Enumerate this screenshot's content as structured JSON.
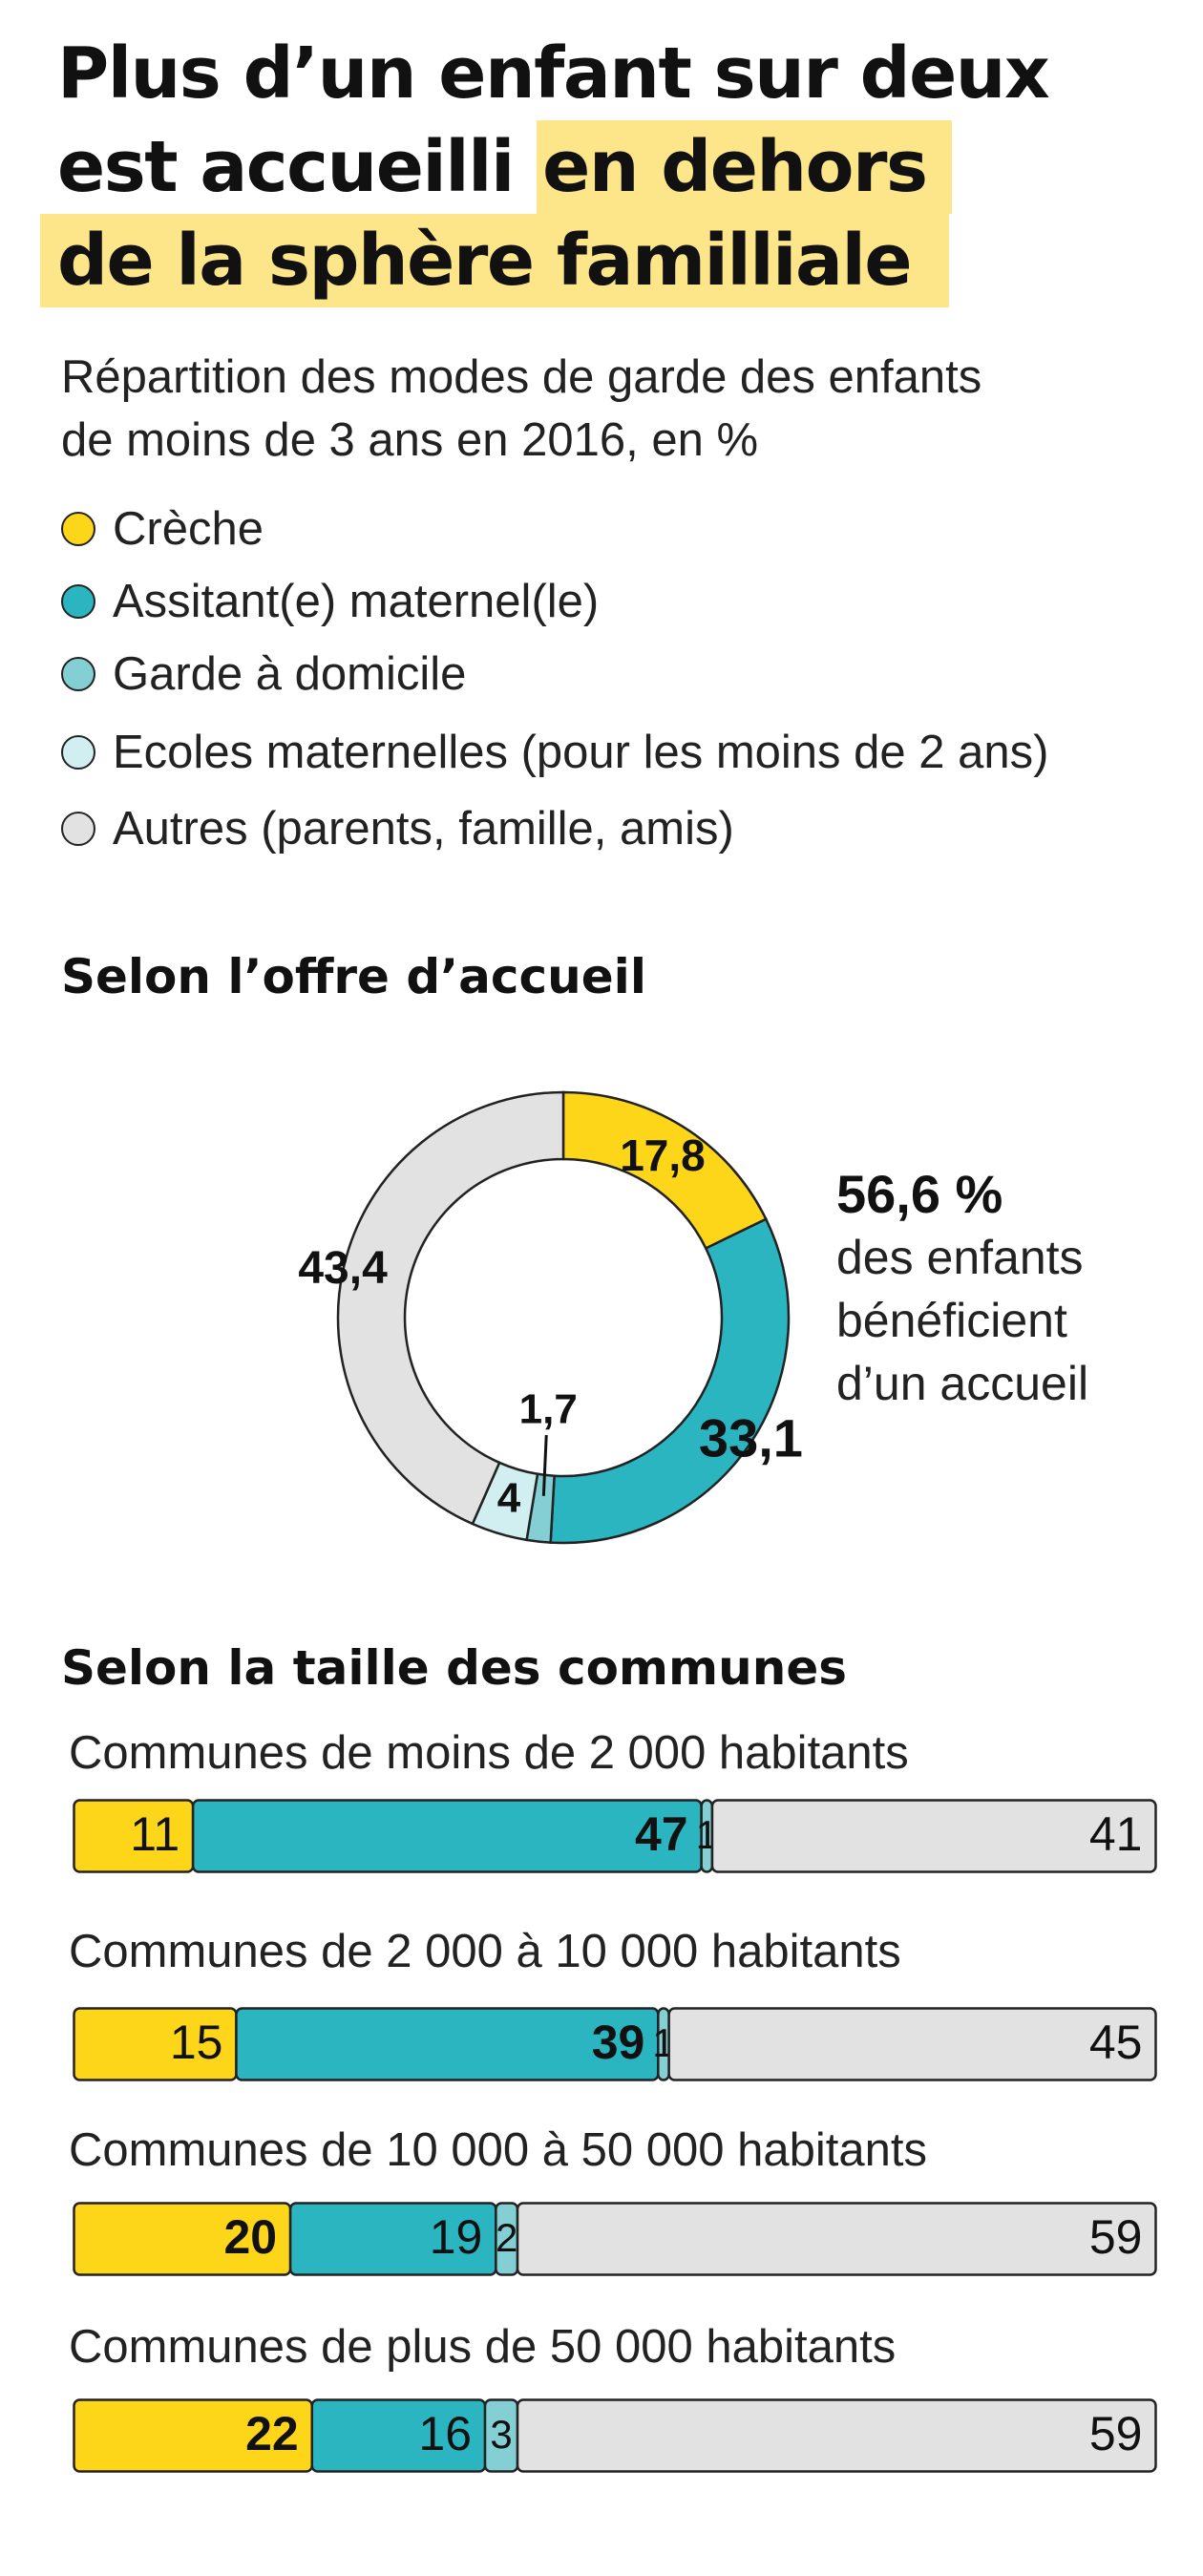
{
  "title": {
    "line1": "Plus d’un enfant sur deux",
    "line2_plain": "est accueilli ",
    "line2_highlight": "en dehors",
    "line3_highlight": "de la sphère familliale"
  },
  "subtitle": {
    "line1": "Répartition des modes de garde des enfants",
    "line2": "de moins de 3 ans en 2016, en %"
  },
  "legend": [
    {
      "label": "Crèche",
      "color": "#fed619"
    },
    {
      "label": "Assitant(e) maternel(le)",
      "color": "#2ab5c0"
    },
    {
      "label": "Garde à domicile",
      "color": "#84cfd3"
    },
    {
      "label": "Ecoles maternelles (pour les moins de 2 ans)",
      "color": "#d1eff0"
    },
    {
      "label": "Autres (parents, famille, amis)",
      "color": "#e2e2e2"
    }
  ],
  "sections": {
    "offre": "Selon l’offre d’accueil",
    "communes": "Selon la taille des communes"
  },
  "callout": {
    "value": "56,6 %",
    "line1": "des enfants",
    "line2": "bénéficient",
    "line3": "d’un accueil"
  },
  "chart_data": [
    {
      "type": "pie",
      "title": "Selon l’offre d’accueil",
      "categories": [
        "Crèche",
        "Assitant(e) maternel(le)",
        "Garde à domicile",
        "Ecoles maternelles (pour les moins de 2 ans)",
        "Autres (parents, famille, amis)"
      ],
      "values": [
        17.8,
        33.1,
        1.7,
        4,
        43.4
      ],
      "value_labels": [
        "17,8",
        "33,1",
        "1,7",
        "4",
        "43,4"
      ],
      "colors": [
        "#fed619",
        "#2ab5c0",
        "#84cfd3",
        "#d1eff0",
        "#e2e2e2"
      ]
    },
    {
      "type": "bar",
      "title": "Selon la taille des communes",
      "categories": [
        "Communes de moins de 2 000 habitants",
        "Communes de 2 000 à 10 000 habitants",
        "Communes de 10 000 à 50 000 habitants",
        "Communes de plus de 50 000 habitants"
      ],
      "stacked": true,
      "series": [
        {
          "name": "Crèche",
          "values": [
            11,
            15,
            20,
            22
          ],
          "color": "#fed619"
        },
        {
          "name": "Assitant(e) maternel(le)",
          "values": [
            47,
            39,
            19,
            16
          ],
          "color": "#2ab5c0"
        },
        {
          "name": "Garde à domicile",
          "values": [
            1,
            1,
            2,
            3
          ],
          "color": "#84cfd3"
        },
        {
          "name": "Autres (parents, famille, amis)",
          "values": [
            41,
            45,
            59,
            59
          ],
          "color": "#e2e2e2"
        }
      ],
      "bold_values": [
        [
          false,
          true,
          false,
          false
        ],
        [
          false,
          true,
          false,
          false
        ],
        [
          true,
          false,
          false,
          false
        ],
        [
          true,
          false,
          false,
          false
        ]
      ]
    }
  ]
}
